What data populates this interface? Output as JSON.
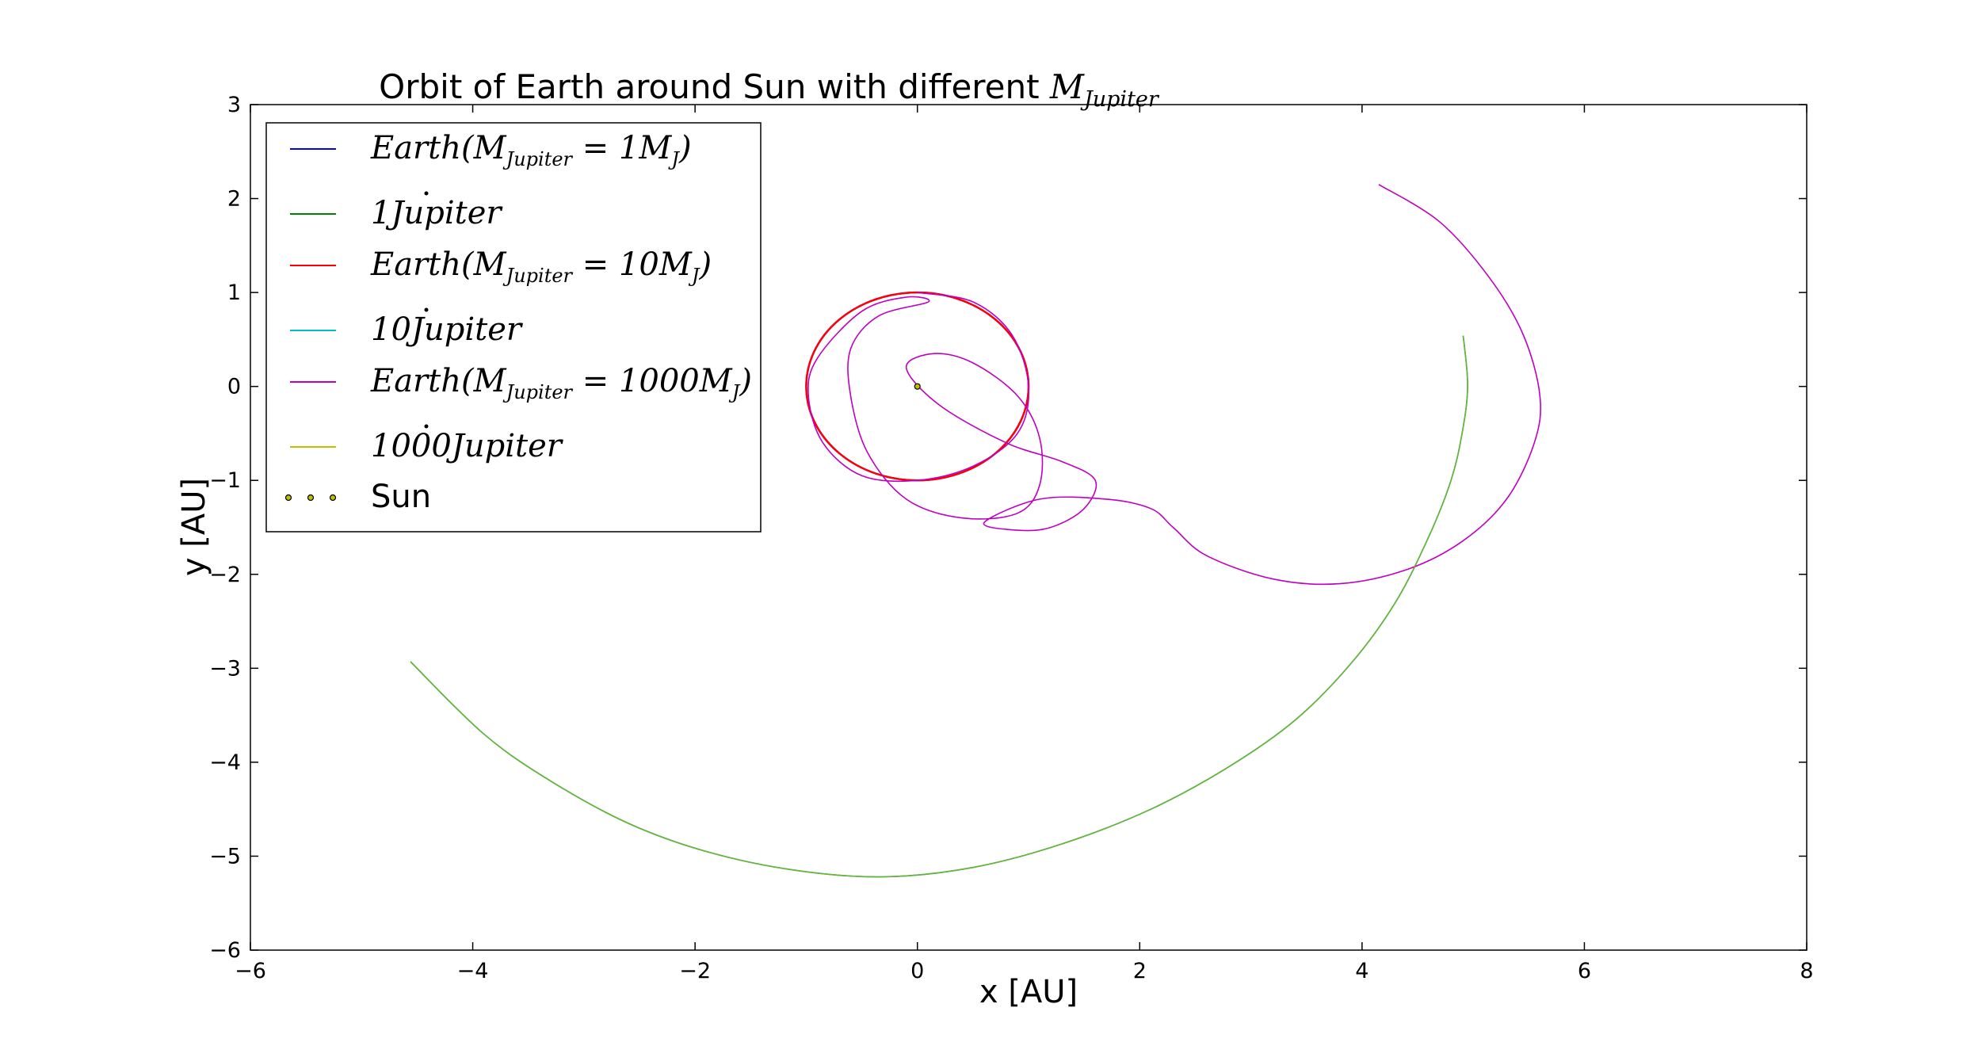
{
  "chart_data": {
    "type": "line",
    "title": {
      "prefix": "Orbit of Earth around Sun with different ",
      "math_main": "M",
      "math_sub": "Jupiter"
    },
    "xlabel": "x [AU]",
    "ylabel": "y [AU]",
    "xlim": [
      -6,
      8
    ],
    "ylim": [
      -6,
      3
    ],
    "xticks": [
      -6,
      -4,
      -2,
      0,
      2,
      4,
      6,
      8
    ],
    "yticks": [
      -6,
      -5,
      -4,
      -3,
      -2,
      -1,
      0,
      1,
      2,
      3
    ],
    "xtick_labels": [
      "−6",
      "−4",
      "−2",
      "0",
      "2",
      "4",
      "6",
      "8"
    ],
    "ytick_labels": [
      "−6",
      "−5",
      "−4",
      "−3",
      "−2",
      "−1",
      "0",
      "1",
      "2",
      "3"
    ],
    "grid": false,
    "legend_position": "upper-left",
    "series": [
      {
        "name": "Earth(M_Jupiter = 1M_J)",
        "color": "#0000ff",
        "style": "line",
        "shape": "circle",
        "points": [
          [
            1.0,
            0.0
          ],
          [
            0.707,
            0.707
          ],
          [
            0.0,
            1.0
          ],
          [
            -0.707,
            0.707
          ],
          [
            -1.0,
            0.0
          ],
          [
            -0.707,
            -0.707
          ],
          [
            0.0,
            -1.0
          ],
          [
            0.707,
            -0.707
          ],
          [
            1.0,
            0.0
          ]
        ]
      },
      {
        "name": "1 Jupiter",
        "color": "#008000",
        "style": "line",
        "points": [
          [
            4.91,
            0.54
          ],
          [
            4.95,
            0.0
          ],
          [
            4.9,
            -0.5
          ],
          [
            4.8,
            -1.0
          ],
          [
            4.6,
            -1.6
          ],
          [
            4.3,
            -2.3
          ],
          [
            3.9,
            -2.95
          ],
          [
            3.4,
            -3.55
          ],
          [
            2.8,
            -4.05
          ],
          [
            2.1,
            -4.5
          ],
          [
            1.3,
            -4.87
          ],
          [
            0.5,
            -5.12
          ],
          [
            -0.3,
            -5.22
          ],
          [
            -1.1,
            -5.15
          ],
          [
            -1.9,
            -4.95
          ],
          [
            -2.6,
            -4.65
          ],
          [
            -3.3,
            -4.2
          ],
          [
            -3.9,
            -3.7
          ],
          [
            -4.56,
            -2.93
          ]
        ]
      },
      {
        "name": "Earth(M_Jupiter = 10M_J)",
        "color": "#ff0000",
        "style": "line",
        "shape": "circle",
        "points": [
          [
            1.0,
            0.0
          ],
          [
            0.707,
            0.707
          ],
          [
            0.0,
            1.0
          ],
          [
            -0.707,
            0.707
          ],
          [
            -1.0,
            0.0
          ],
          [
            -0.707,
            -0.707
          ],
          [
            0.0,
            -1.0
          ],
          [
            0.707,
            -0.707
          ],
          [
            1.0,
            0.0
          ]
        ]
      },
      {
        "name": "10 Jupiter",
        "color": "#00bfbf",
        "style": "line",
        "points": [
          [
            4.91,
            0.54
          ],
          [
            4.95,
            0.0
          ],
          [
            4.9,
            -0.5
          ],
          [
            4.8,
            -1.0
          ],
          [
            4.6,
            -1.6
          ],
          [
            4.3,
            -2.3
          ],
          [
            3.9,
            -2.95
          ],
          [
            3.4,
            -3.55
          ],
          [
            2.8,
            -4.05
          ],
          [
            2.1,
            -4.5
          ],
          [
            1.3,
            -4.87
          ],
          [
            0.5,
            -5.12
          ],
          [
            -0.3,
            -5.22
          ],
          [
            -1.1,
            -5.15
          ],
          [
            -1.9,
            -4.95
          ],
          [
            -2.6,
            -4.65
          ],
          [
            -3.3,
            -4.2
          ],
          [
            -3.9,
            -3.7
          ],
          [
            -4.56,
            -2.93
          ]
        ]
      },
      {
        "name": "Earth(M_Jupiter = 1000M_J)",
        "color": "#bf00bf",
        "style": "line",
        "points": [
          [
            0.0,
            1.0
          ],
          [
            0.5,
            0.9
          ],
          [
            0.85,
            0.55
          ],
          [
            1.0,
            0.0
          ],
          [
            0.9,
            -0.5
          ],
          [
            0.5,
            -0.85
          ],
          [
            0.0,
            -1.0
          ],
          [
            -0.5,
            -0.95
          ],
          [
            -0.85,
            -0.6
          ],
          [
            -0.98,
            -0.1
          ],
          [
            -0.9,
            0.3
          ],
          [
            -0.5,
            0.8
          ],
          [
            -0.1,
            0.95
          ],
          [
            0.1,
            0.9
          ],
          [
            -0.35,
            0.75
          ],
          [
            -0.6,
            0.4
          ],
          [
            -0.6,
            -0.1
          ],
          [
            -0.45,
            -0.7
          ],
          [
            -0.1,
            -1.2
          ],
          [
            0.4,
            -1.4
          ],
          [
            0.9,
            -1.35
          ],
          [
            1.1,
            -1.05
          ],
          [
            1.1,
            -0.55
          ],
          [
            0.9,
            -0.1
          ],
          [
            0.5,
            0.25
          ],
          [
            0.15,
            0.35
          ],
          [
            -0.1,
            0.2
          ],
          [
            0.2,
            -0.2
          ],
          [
            0.8,
            -0.6
          ],
          [
            1.3,
            -0.8
          ],
          [
            1.6,
            -1.0
          ],
          [
            1.5,
            -1.3
          ],
          [
            1.2,
            -1.5
          ],
          [
            0.9,
            -1.53
          ],
          [
            0.6,
            -1.45
          ],
          [
            1.1,
            -1.2
          ],
          [
            1.7,
            -1.2
          ],
          [
            2.1,
            -1.3
          ],
          [
            2.3,
            -1.5
          ],
          [
            2.6,
            -1.8
          ],
          [
            3.2,
            -2.05
          ],
          [
            3.8,
            -2.1
          ],
          [
            4.4,
            -1.95
          ],
          [
            4.9,
            -1.65
          ],
          [
            5.3,
            -1.2
          ],
          [
            5.55,
            -0.6
          ],
          [
            5.6,
            -0.1
          ],
          [
            5.45,
            0.55
          ],
          [
            5.15,
            1.15
          ],
          [
            4.7,
            1.75
          ],
          [
            4.15,
            2.15
          ]
        ]
      },
      {
        "name": "1000 Jupiter",
        "color": "#bfbf00",
        "style": "line",
        "points": [
          [
            4.91,
            0.54
          ],
          [
            4.95,
            0.0
          ],
          [
            4.9,
            -0.5
          ],
          [
            4.8,
            -1.0
          ],
          [
            4.6,
            -1.6
          ],
          [
            4.3,
            -2.3
          ],
          [
            3.9,
            -2.95
          ],
          [
            3.4,
            -3.55
          ],
          [
            2.8,
            -4.05
          ],
          [
            2.1,
            -4.5
          ],
          [
            1.3,
            -4.87
          ],
          [
            0.5,
            -5.12
          ],
          [
            -0.3,
            -5.22
          ],
          [
            -1.1,
            -5.15
          ],
          [
            -1.9,
            -4.95
          ],
          [
            -2.6,
            -4.65
          ],
          [
            -3.3,
            -4.2
          ],
          [
            -3.9,
            -3.7
          ],
          [
            -4.56,
            -2.93
          ]
        ]
      },
      {
        "name": "Sun",
        "color": "#bfbf00",
        "style": "scatter",
        "points": [
          [
            0.0,
            0.0
          ]
        ]
      }
    ],
    "legend": [
      {
        "kind": "math",
        "color": "#0000ff",
        "parts": [
          [
            "t",
            "Earth(M"
          ],
          [
            "s",
            "Jupiter"
          ],
          [
            "t",
            " = 1M"
          ],
          [
            "s",
            "J"
          ],
          [
            "t",
            ")"
          ]
        ]
      },
      {
        "kind": "math",
        "color": "#008000",
        "parts": [
          [
            "t",
            "1"
          ],
          [
            "d",
            "J"
          ],
          [
            "t",
            "upiter"
          ]
        ]
      },
      {
        "kind": "math",
        "color": "#ff0000",
        "parts": [
          [
            "t",
            "Earth(M"
          ],
          [
            "s",
            "Jupiter"
          ],
          [
            "t",
            " = 10M"
          ],
          [
            "s",
            "J"
          ],
          [
            "t",
            ")"
          ]
        ]
      },
      {
        "kind": "math",
        "color": "#00bfbf",
        "parts": [
          [
            "t",
            "10"
          ],
          [
            "d",
            "J"
          ],
          [
            "t",
            "upiter"
          ]
        ]
      },
      {
        "kind": "math",
        "color": "#bf00bf",
        "parts": [
          [
            "t",
            "Earth(M"
          ],
          [
            "s",
            "Jupiter"
          ],
          [
            "t",
            " = 1000M"
          ],
          [
            "s",
            "J"
          ],
          [
            "t",
            ")"
          ]
        ]
      },
      {
        "kind": "math",
        "color": "#bfbf00",
        "parts": [
          [
            "t",
            "1000"
          ],
          [
            "d",
            "J"
          ],
          [
            "t",
            "upiter"
          ]
        ]
      },
      {
        "kind": "scatter",
        "color": "#bfbf00",
        "label": "Sun"
      }
    ]
  }
}
